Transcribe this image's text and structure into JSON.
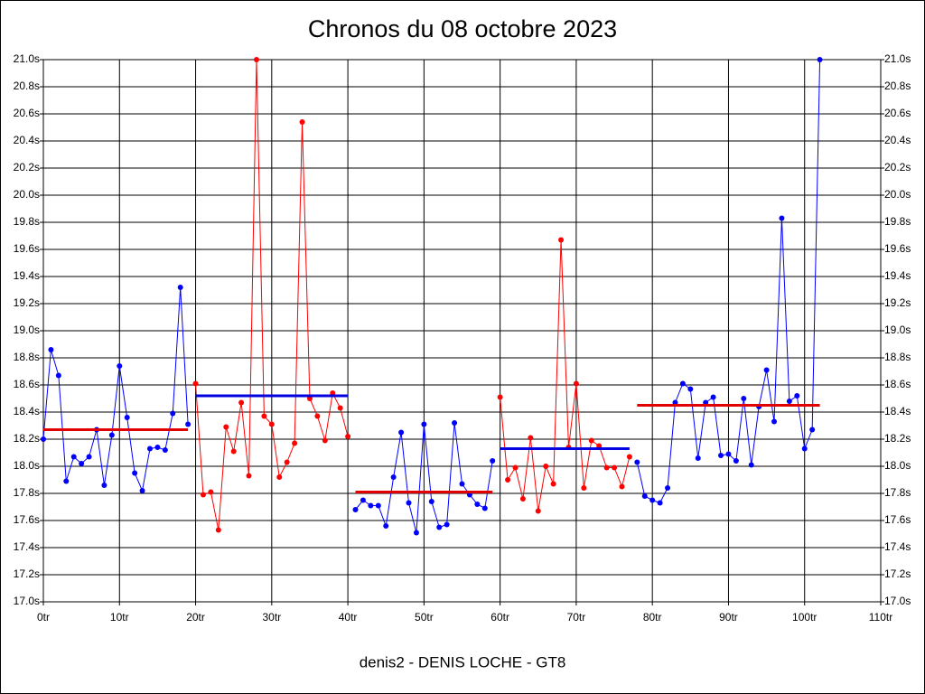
{
  "chart_data": {
    "type": "line",
    "title": "Chronos du 08 octobre 2023",
    "footer": "denis2 - DENIS LOCHE - GT8",
    "xlim": [
      0,
      110
    ],
    "xticks": [
      {
        "value": 0,
        "label": "0tr"
      },
      {
        "value": 10,
        "label": "10tr"
      },
      {
        "value": 20,
        "label": "20tr"
      },
      {
        "value": 30,
        "label": "30tr"
      },
      {
        "value": 40,
        "label": "40tr"
      },
      {
        "value": 50,
        "label": "50tr"
      },
      {
        "value": 60,
        "label": "60tr"
      },
      {
        "value": 70,
        "label": "70tr"
      },
      {
        "value": 80,
        "label": "80tr"
      },
      {
        "value": 90,
        "label": "90tr"
      },
      {
        "value": 100,
        "label": "100tr"
      },
      {
        "value": 110,
        "label": "110tr"
      }
    ],
    "ylim": [
      17.0,
      21.0
    ],
    "yticks": [
      {
        "value": 17.0,
        "label": "17.0s"
      },
      {
        "value": 17.2,
        "label": "17.2s"
      },
      {
        "value": 17.4,
        "label": "17.4s"
      },
      {
        "value": 17.6,
        "label": "17.6s"
      },
      {
        "value": 17.8,
        "label": "17.8s"
      },
      {
        "value": 18.0,
        "label": "18.0s"
      },
      {
        "value": 18.2,
        "label": "18.2s"
      },
      {
        "value": 18.4,
        "label": "18.4s"
      },
      {
        "value": 18.6,
        "label": "18.6s"
      },
      {
        "value": 18.8,
        "label": "18.8s"
      },
      {
        "value": 19.0,
        "label": "19.0s"
      },
      {
        "value": 19.2,
        "label": "19.2s"
      },
      {
        "value": 19.4,
        "label": "19.4s"
      },
      {
        "value": 19.6,
        "label": "19.6s"
      },
      {
        "value": 19.8,
        "label": "19.8s"
      },
      {
        "value": 20.0,
        "label": "20.0s"
      },
      {
        "value": 20.2,
        "label": "20.2s"
      },
      {
        "value": 20.4,
        "label": "20.4s"
      },
      {
        "value": 20.6,
        "label": "20.6s"
      },
      {
        "value": 20.8,
        "label": "20.8s"
      },
      {
        "value": 21.0,
        "label": "21.0s"
      }
    ],
    "grid": true,
    "series": [
      {
        "color": "#0000ff",
        "x": [
          0,
          1,
          2,
          3,
          4,
          5,
          6,
          7,
          8,
          9,
          10,
          11,
          12,
          13,
          14,
          15,
          16,
          17,
          18,
          19
        ],
        "values": [
          18.2,
          18.86,
          18.67,
          17.89,
          18.07,
          18.02,
          18.07,
          18.27,
          17.86,
          18.23,
          18.74,
          18.36,
          17.95,
          17.82,
          18.13,
          18.14,
          18.12,
          18.39,
          19.32,
          18.31
        ]
      },
      {
        "color": "#ff0000",
        "x": [
          20,
          21,
          22,
          23,
          24,
          25,
          26,
          27,
          28,
          29,
          30,
          31,
          32,
          33,
          34,
          35,
          36,
          37,
          38,
          39,
          40
        ],
        "values": [
          18.61,
          17.79,
          17.81,
          17.53,
          18.29,
          18.11,
          18.47,
          17.93,
          21.0,
          18.37,
          18.31,
          17.92,
          18.03,
          18.17,
          20.54,
          18.5,
          18.37,
          18.19,
          18.54,
          18.43,
          18.22
        ]
      },
      {
        "color": "#0000ff",
        "x": [
          41,
          42,
          43,
          44,
          45,
          46,
          47,
          48,
          49,
          50,
          51,
          52,
          53,
          54,
          55,
          56,
          57,
          58,
          59
        ],
        "values": [
          17.68,
          17.75,
          17.71,
          17.71,
          17.56,
          17.92,
          18.25,
          17.73,
          17.51,
          18.31,
          17.74,
          17.55,
          17.57,
          18.32,
          17.87,
          17.79,
          17.72,
          17.69,
          18.04
        ]
      },
      {
        "color": "#ff0000",
        "x": [
          60,
          61,
          62,
          63,
          64,
          65,
          66,
          67,
          68,
          69,
          70,
          71,
          72,
          73,
          74,
          75,
          76,
          77
        ],
        "values": [
          18.51,
          17.9,
          17.99,
          17.76,
          18.21,
          17.67,
          18.0,
          17.87,
          19.67,
          18.14,
          18.61,
          17.84,
          18.19,
          18.15,
          17.99,
          17.99,
          17.85,
          18.07
        ]
      },
      {
        "color": "#0000ff",
        "x": [
          78,
          79,
          80,
          81,
          82,
          83,
          84,
          85,
          86,
          87,
          88,
          89,
          90,
          91,
          92,
          93,
          94,
          95,
          96,
          97,
          98,
          99,
          100,
          101,
          102
        ],
        "values": [
          18.03,
          17.78,
          17.75,
          17.73,
          17.84,
          18.47,
          18.61,
          18.57,
          18.06,
          18.47,
          18.51,
          18.08,
          18.09,
          18.04,
          18.5,
          18.01,
          18.44,
          18.71,
          18.33,
          19.83,
          18.48,
          18.52,
          18.13,
          18.27,
          21.0
        ]
      }
    ],
    "averages": [
      {
        "color": "#e00000",
        "from": 0,
        "to": 19,
        "value": 18.27
      },
      {
        "color": "#0000e0",
        "from": 20,
        "to": 40,
        "value": 18.52
      },
      {
        "color": "#e00000",
        "from": 41,
        "to": 59,
        "value": 17.81
      },
      {
        "color": "#0000e0",
        "from": 60,
        "to": 77,
        "value": 18.13
      },
      {
        "color": "#e00000",
        "from": 78,
        "to": 102,
        "value": 18.45
      }
    ]
  }
}
